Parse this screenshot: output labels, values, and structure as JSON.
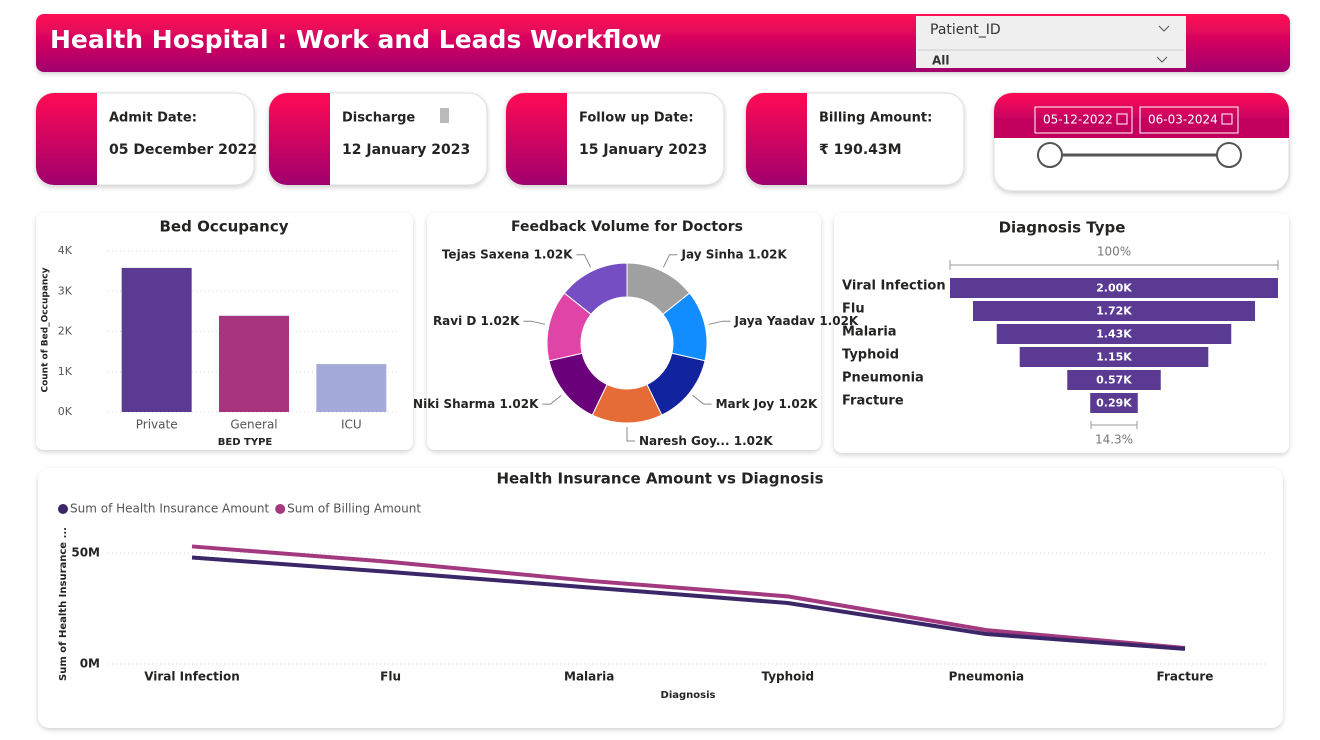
{
  "header": {
    "title": "Health Hospital : Work and Leads Workflow",
    "filter_label": "Patient_ID",
    "filter_value": "All"
  },
  "cards": [
    {
      "label": "Admit Date:",
      "value": "05 December 2022"
    },
    {
      "label": "Discharge",
      "value": "12 January 2023"
    },
    {
      "label": "Follow up Date:",
      "value": "15 January 2023"
    },
    {
      "label": "Billing Amount:",
      "value": "₹ 190.43M"
    }
  ],
  "date_range": {
    "start": "05-12-2022",
    "end": "06-03-2024"
  },
  "chart_data": [
    {
      "type": "bar",
      "title": "Bed Occupancy",
      "x_label": "BED TYPE",
      "y_label": "Count of Bed_Occupancy",
      "categories": [
        "Private",
        "General",
        "ICU"
      ],
      "values": [
        3580,
        2390,
        1190
      ],
      "colors": [
        "#5b3a93",
        "#a83480",
        "#a3a9d9"
      ],
      "ylim": [
        0,
        4000
      ],
      "yticks": [
        {
          "value": 0,
          "label": "0K"
        },
        {
          "value": 1000,
          "label": "1K"
        },
        {
          "value": 2000,
          "label": "2K"
        },
        {
          "value": 3000,
          "label": "3K"
        },
        {
          "value": 4000,
          "label": "4K"
        }
      ],
      "grid": true
    },
    {
      "type": "donut",
      "title": "Feedback Volume for Doctors",
      "categories": [
        "Jay Sinha",
        "Jaya Yaadav",
        "Mark Joy",
        "Naresh Goy...",
        "Niki Sharma",
        "Ravi D",
        "Tejas Saxena"
      ],
      "values": [
        1020,
        1020,
        1020,
        1020,
        1020,
        1020,
        1020
      ],
      "value_labels": [
        "1.02K",
        "1.02K",
        "1.02K",
        "1.02K",
        "1.02K",
        "1.02K",
        "1.02K"
      ],
      "colors": [
        "#a0a0a0",
        "#118dff",
        "#12239e",
        "#e66c37",
        "#6b007b",
        "#e044a7",
        "#744ec2"
      ]
    },
    {
      "type": "funnel",
      "title": "Diagnosis Type",
      "categories": [
        "Viral Infection",
        "Flu",
        "Malaria",
        "Typhoid",
        "Pneumonia",
        "Fracture"
      ],
      "values": [
        2000,
        1720,
        1430,
        1150,
        570,
        290
      ],
      "value_labels": [
        "2.00K",
        "1.72K",
        "1.43K",
        "1.15K",
        "0.57K",
        "0.29K"
      ],
      "top_label": "100%",
      "bottom_label": "14.3%",
      "color": "#5b3a93"
    },
    {
      "type": "line",
      "title": "Health Insurance Amount vs Diagnosis",
      "x_label": "Diagnosis",
      "y_label": "Sum of Health Insurance ...",
      "categories": [
        "Viral Infection",
        "Flu",
        "Malaria",
        "Typhoid",
        "Pneumonia",
        "Fracture"
      ],
      "series": [
        {
          "name": "Sum of Health Insurance Amount",
          "color": "#3b2668",
          "values": [
            48000000,
            41500000,
            34500000,
            27500000,
            13500000,
            6800000
          ]
        },
        {
          "name": "Sum of Billing Amount",
          "color": "#a33a80",
          "values": [
            53000000,
            46000000,
            37500000,
            30500000,
            15300000,
            7200000
          ]
        }
      ],
      "ylim": [
        0,
        55000000
      ],
      "yticks": [
        {
          "value": 0,
          "label": "0M"
        },
        {
          "value": 50000000,
          "label": "50M"
        }
      ],
      "grid": true
    }
  ]
}
